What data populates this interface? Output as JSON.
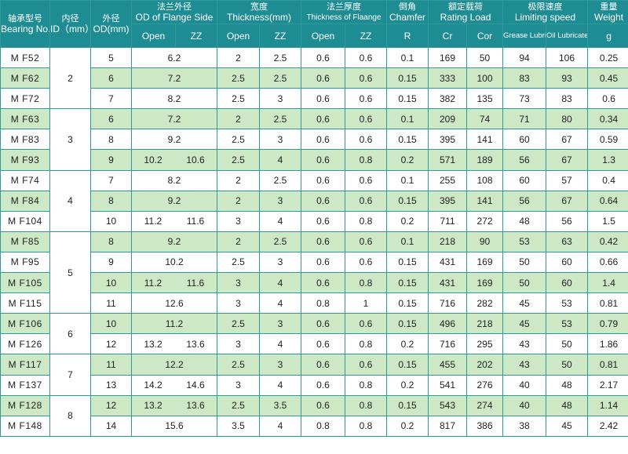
{
  "headers": {
    "bearing_cn": "轴承型号",
    "bearing_en": "Bearing No.",
    "id_cn": "内径",
    "id_en": "ID（mm）",
    "od_cn": "外径",
    "od_en": "OD(mm)",
    "flange_od_cn": "法兰外径",
    "flange_od_en": "OD of Flange Side",
    "thickness_cn": "宽度",
    "thickness_en": "Thickness(mm)",
    "flange_thk_cn": "法兰厚度",
    "flange_thk_en": "Thickness of Flaange",
    "chamfer_cn": "倒角",
    "chamfer_en": "Chamfer",
    "load_cn": "额定载荷",
    "load_en": "Rating Load",
    "speed_cn": "极限速度",
    "speed_en": "Limiting speed",
    "weight_cn": "重量",
    "weight_en": "Weight",
    "sub": {
      "open": "Open",
      "zz": "ZZ",
      "r": "R",
      "cr": "Cr",
      "cor": "Cor",
      "grease": "Grease Lubricated",
      "oil": "Oil Lubricated",
      "g": "g"
    }
  },
  "groups": [
    {
      "id": "2",
      "rows": [
        {
          "no": "M F52",
          "od": "5",
          "fod": "6.2",
          "fod_zz": null,
          "t_open": "2",
          "t_zz": "2.5",
          "ft_open": "0.6",
          "ft_zz": "0.6",
          "r": "0.1",
          "cr": "169",
          "cor": "50",
          "grease": "94",
          "oil": "106",
          "weight": "0.25"
        },
        {
          "no": "M F62",
          "od": "6",
          "fod": "7.2",
          "fod_zz": null,
          "t_open": "2.5",
          "t_zz": "2.5",
          "ft_open": "0.6",
          "ft_zz": "0.6",
          "r": "0.15",
          "cr": "333",
          "cor": "100",
          "grease": "83",
          "oil": "93",
          "weight": "0.45"
        },
        {
          "no": "M F72",
          "od": "7",
          "fod": "8.2",
          "fod_zz": null,
          "t_open": "2.5",
          "t_zz": "3",
          "ft_open": "0.6",
          "ft_zz": "0.6",
          "r": "0.15",
          "cr": "382",
          "cor": "135",
          "grease": "73",
          "oil": "83",
          "weight": "0.6"
        }
      ]
    },
    {
      "id": "3",
      "rows": [
        {
          "no": "M F63",
          "od": "6",
          "fod": "7.2",
          "fod_zz": null,
          "t_open": "2",
          "t_zz": "2.5",
          "ft_open": "0.6",
          "ft_zz": "0.6",
          "r": "0.1",
          "cr": "209",
          "cor": "74",
          "grease": "71",
          "oil": "80",
          "weight": "0.34"
        },
        {
          "no": "M F83",
          "od": "8",
          "fod": "9.2",
          "fod_zz": null,
          "t_open": "2.5",
          "t_zz": "3",
          "ft_open": "0.6",
          "ft_zz": "0.6",
          "r": "0.15",
          "cr": "395",
          "cor": "141",
          "grease": "60",
          "oil": "67",
          "weight": "0.59"
        },
        {
          "no": "M F93",
          "od": "9",
          "fod": "10.2",
          "fod_zz": "10.6",
          "t_open": "2.5",
          "t_zz": "4",
          "ft_open": "0.6",
          "ft_zz": "0.8",
          "r": "0.2",
          "cr": "571",
          "cor": "189",
          "grease": "56",
          "oil": "67",
          "weight": "1.3"
        }
      ]
    },
    {
      "id": "4",
      "rows": [
        {
          "no": "M F74",
          "od": "7",
          "fod": "8.2",
          "fod_zz": null,
          "t_open": "2",
          "t_zz": "2.5",
          "ft_open": "0.6",
          "ft_zz": "0.6",
          "r": "0.1",
          "cr": "255",
          "cor": "108",
          "grease": "60",
          "oil": "57",
          "weight": "0.4"
        },
        {
          "no": "M F84",
          "od": "8",
          "fod": "9.2",
          "fod_zz": null,
          "t_open": "2",
          "t_zz": "3",
          "ft_open": "0.6",
          "ft_zz": "0.6",
          "r": "0.15",
          "cr": "395",
          "cor": "141",
          "grease": "56",
          "oil": "67",
          "weight": "0.64"
        },
        {
          "no": "M F104",
          "od": "10",
          "fod": "11.2",
          "fod_zz": "11.6",
          "t_open": "3",
          "t_zz": "4",
          "ft_open": "0.6",
          "ft_zz": "0.8",
          "r": "0.2",
          "cr": "711",
          "cor": "272",
          "grease": "48",
          "oil": "56",
          "weight": "1.5"
        }
      ]
    },
    {
      "id": "5",
      "rows": [
        {
          "no": "M F85",
          "od": "8",
          "fod": "9.2",
          "fod_zz": null,
          "t_open": "2",
          "t_zz": "2.5",
          "ft_open": "0.6",
          "ft_zz": "0.6",
          "r": "0.1",
          "cr": "218",
          "cor": "90",
          "grease": "53",
          "oil": "63",
          "weight": "0.42"
        },
        {
          "no": "M F95",
          "od": "9",
          "fod": "10.2",
          "fod_zz": null,
          "t_open": "2.5",
          "t_zz": "3",
          "ft_open": "0.6",
          "ft_zz": "0.6",
          "r": "0.15",
          "cr": "431",
          "cor": "169",
          "grease": "50",
          "oil": "60",
          "weight": "0.66"
        },
        {
          "no": "M F105",
          "od": "10",
          "fod": "11.2",
          "fod_zz": "11.6",
          "t_open": "3",
          "t_zz": "4",
          "ft_open": "0.6",
          "ft_zz": "0.8",
          "r": "0.15",
          "cr": "431",
          "cor": "169",
          "grease": "50",
          "oil": "60",
          "weight": "1.4"
        },
        {
          "no": "M F115",
          "od": "11",
          "fod": "12.6",
          "fod_zz": null,
          "t_open": "3",
          "t_zz": "4",
          "ft_open": "0.8",
          "ft_zz": "1",
          "r": "0.15",
          "cr": "716",
          "cor": "282",
          "grease": "45",
          "oil": "53",
          "weight": "0.81"
        }
      ]
    },
    {
      "id": "6",
      "rows": [
        {
          "no": "M F106",
          "od": "10",
          "fod": "11.2",
          "fod_zz": null,
          "t_open": "2.5",
          "t_zz": "3",
          "ft_open": "0.6",
          "ft_zz": "0.6",
          "r": "0.15",
          "cr": "496",
          "cor": "218",
          "grease": "45",
          "oil": "53",
          "weight": "0.79"
        },
        {
          "no": "M F126",
          "od": "12",
          "fod": "13.2",
          "fod_zz": "13.6",
          "t_open": "3",
          "t_zz": "4",
          "ft_open": "0.6",
          "ft_zz": "0.8",
          "r": "0.2",
          "cr": "716",
          "cor": "295",
          "grease": "43",
          "oil": "50",
          "weight": "1.86"
        }
      ]
    },
    {
      "id": "7",
      "rows": [
        {
          "no": "M F117",
          "od": "11",
          "fod": "12.2",
          "fod_zz": null,
          "t_open": "2.5",
          "t_zz": "3",
          "ft_open": "0.6",
          "ft_zz": "0.6",
          "r": "0.15",
          "cr": "455",
          "cor": "202",
          "grease": "43",
          "oil": "50",
          "weight": "0.81"
        },
        {
          "no": "M F137",
          "od": "13",
          "fod": "14.2",
          "fod_zz": "14.6",
          "t_open": "3",
          "t_zz": "4",
          "ft_open": "0.6",
          "ft_zz": "0.8",
          "r": "0.2",
          "cr": "541",
          "cor": "276",
          "grease": "40",
          "oil": "48",
          "weight": "2.17"
        }
      ]
    },
    {
      "id": "8",
      "rows": [
        {
          "no": "M F128",
          "od": "12",
          "fod": "13.2",
          "fod_zz": "13.6",
          "t_open": "2.5",
          "t_zz": "3.5",
          "ft_open": "0.6",
          "ft_zz": "0.8",
          "r": "0.15",
          "cr": "543",
          "cor": "274",
          "grease": "40",
          "oil": "48",
          "weight": "1.14"
        },
        {
          "no": "M F148",
          "od": "14",
          "fod": "15.6",
          "fod_zz": null,
          "t_open": "3.5",
          "t_zz": "4",
          "ft_open": "0.8",
          "ft_zz": "0.8",
          "r": "0.2",
          "cr": "817",
          "cor": "386",
          "grease": "38",
          "oil": "45",
          "weight": "2.42"
        }
      ]
    }
  ],
  "colors": {
    "header": "#1e8d93",
    "stripe": "#cce8c5",
    "border": "#2f9a97"
  }
}
